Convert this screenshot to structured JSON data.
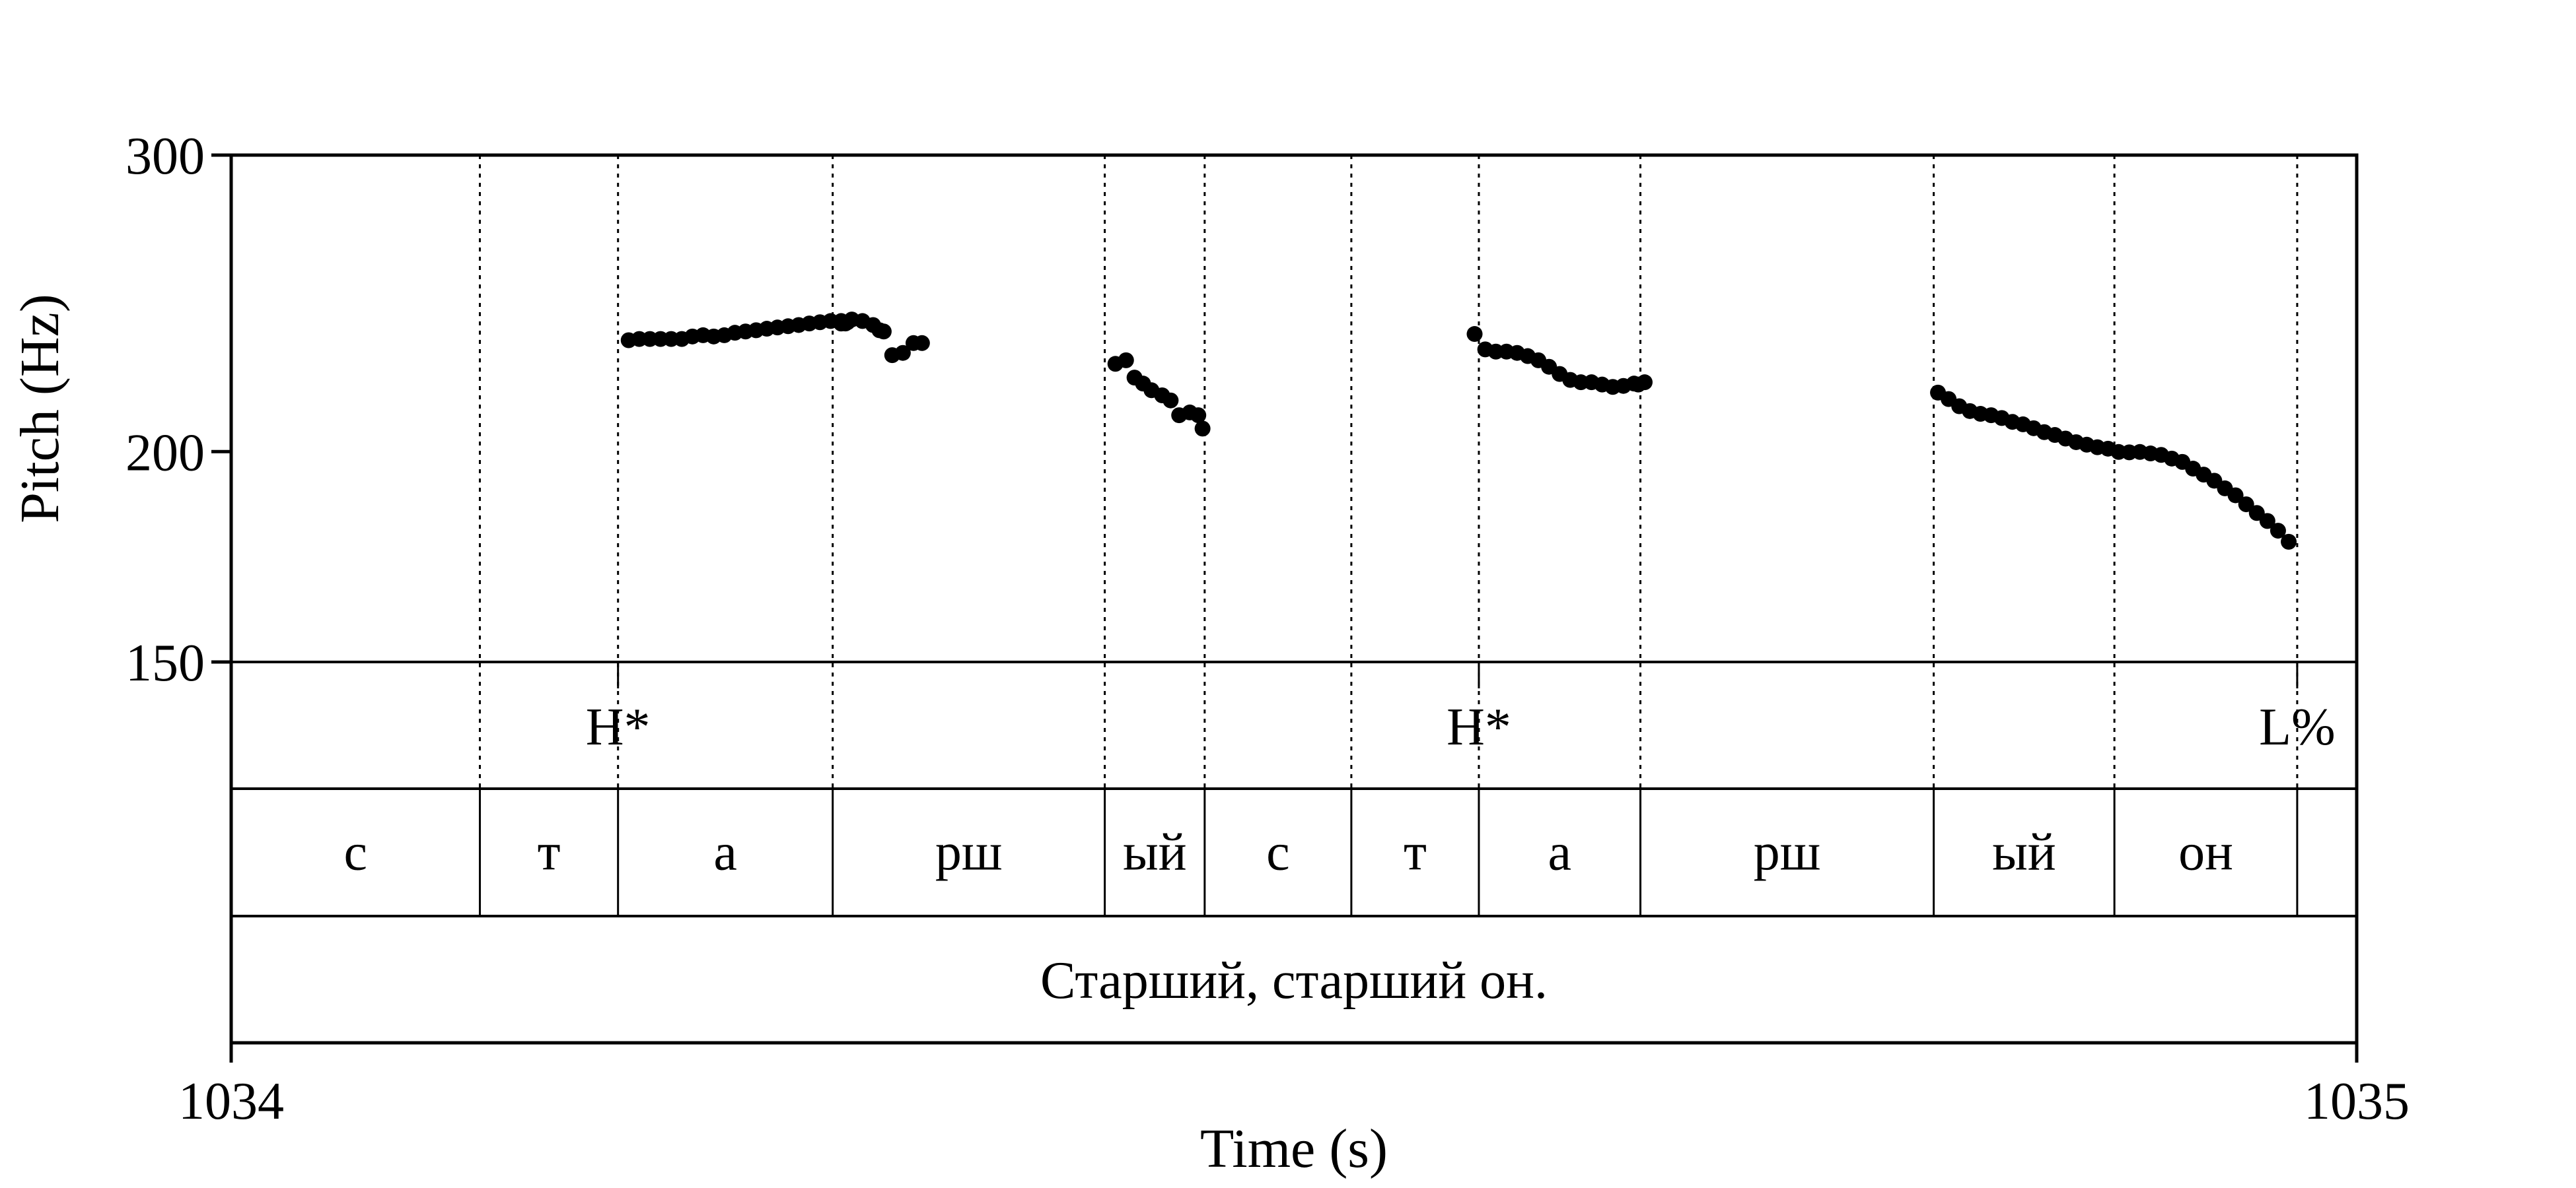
{
  "chart_data": {
    "type": "scatter",
    "xlabel": "Time (s)",
    "ylabel": "Pitch (Hz)",
    "xlim": [
      1034,
      1035
    ],
    "ylim": [
      150,
      300
    ],
    "y_scale": "log",
    "x_ticks": [
      {
        "value": 1034,
        "label": "1034"
      },
      {
        "value": 1035,
        "label": "1035"
      }
    ],
    "y_ticks": [
      {
        "value": 150,
        "label": "150"
      },
      {
        "value": 200,
        "label": "200"
      },
      {
        "value": 300,
        "label": "300"
      }
    ],
    "grid": false,
    "legend": "none",
    "point_color": "#000000",
    "boundaries": [
      1034.117,
      1034.182,
      1034.283,
      1034.411,
      1034.458,
      1034.527,
      1034.587,
      1034.663,
      1034.801,
      1034.886,
      1034.972
    ],
    "tiers": [
      {
        "name": "tones",
        "points": [
          {
            "time": 1034.182,
            "label": "H*"
          },
          {
            "time": 1034.587,
            "label": "H*"
          },
          {
            "time": 1034.972,
            "label": "L%"
          }
        ]
      },
      {
        "name": "segments",
        "intervals": [
          {
            "start": 1034.0,
            "end": 1034.117,
            "label": "с"
          },
          {
            "start": 1034.117,
            "end": 1034.182,
            "label": "т"
          },
          {
            "start": 1034.182,
            "end": 1034.283,
            "label": "а"
          },
          {
            "start": 1034.283,
            "end": 1034.411,
            "label": "рш"
          },
          {
            "start": 1034.411,
            "end": 1034.458,
            "label": "ый"
          },
          {
            "start": 1034.458,
            "end": 1034.527,
            "label": "с"
          },
          {
            "start": 1034.527,
            "end": 1034.587,
            "label": "т"
          },
          {
            "start": 1034.587,
            "end": 1034.663,
            "label": "а"
          },
          {
            "start": 1034.663,
            "end": 1034.801,
            "label": "рш"
          },
          {
            "start": 1034.801,
            "end": 1034.886,
            "label": "ый"
          },
          {
            "start": 1034.886,
            "end": 1034.972,
            "label": "он"
          },
          {
            "start": 1034.972,
            "end": 1035.0,
            "label": ""
          }
        ]
      },
      {
        "name": "sentence",
        "intervals": [
          {
            "start": 1034.0,
            "end": 1035.0,
            "label": "Старший, старший он."
          }
        ]
      }
    ],
    "series": [
      {
        "points": [
          [
            1034.187,
            232.9
          ],
          [
            1034.192,
            233.3
          ],
          [
            1034.197,
            233.3
          ],
          [
            1034.202,
            233.3
          ],
          [
            1034.207,
            233.3
          ],
          [
            1034.212,
            233.3
          ],
          [
            1034.217,
            234.1
          ],
          [
            1034.222,
            234.5
          ],
          [
            1034.227,
            234.1
          ],
          [
            1034.232,
            234.5
          ],
          [
            1034.237,
            235.3
          ],
          [
            1034.242,
            235.7
          ],
          [
            1034.247,
            236.1
          ],
          [
            1034.252,
            236.6
          ],
          [
            1034.257,
            237.0
          ],
          [
            1034.262,
            237.4
          ],
          [
            1034.267,
            237.8
          ],
          [
            1034.272,
            238.3
          ],
          [
            1034.277,
            238.7
          ],
          [
            1034.282,
            239.1
          ],
          [
            1034.287,
            239.1
          ],
          [
            1034.292,
            239.6
          ],
          [
            1034.297,
            239.1
          ],
          [
            1034.302,
            237.8
          ],
          [
            1034.307,
            235.7
          ],
          [
            1034.287,
            238.3
          ],
          [
            1034.287,
            238.3
          ],
          [
            1034.288,
            238.7
          ],
          [
            1034.29,
            238.7
          ],
          [
            1034.289,
            238.3
          ],
          [
            1034.305,
            236.1
          ],
          [
            1034.311,
            228.2
          ],
          [
            1034.316,
            228.9
          ],
          [
            1034.321,
            232.0
          ],
          [
            1034.325,
            232.0
          ],
          [
            1034.416,
            225.5
          ],
          [
            1034.421,
            226.6
          ],
          [
            1034.425,
            221.3
          ],
          [
            1034.429,
            219.5
          ],
          [
            1034.433,
            217.5
          ],
          [
            1034.438,
            216.0
          ],
          [
            1034.442,
            214.5
          ],
          [
            1034.446,
            210.2
          ],
          [
            1034.451,
            211.0
          ],
          [
            1034.455,
            210.2
          ],
          [
            1034.457,
            206.4
          ],
          [
            1034.585,
            234.9
          ],
          [
            1034.59,
            230.0
          ],
          [
            1034.595,
            229.3
          ],
          [
            1034.6,
            229.3
          ],
          [
            1034.605,
            228.9
          ],
          [
            1034.61,
            227.9
          ],
          [
            1034.615,
            226.6
          ],
          [
            1034.62,
            224.6
          ],
          [
            1034.625,
            222.4
          ],
          [
            1034.63,
            220.6
          ],
          [
            1034.635,
            219.9
          ],
          [
            1034.64,
            219.9
          ],
          [
            1034.645,
            219.2
          ],
          [
            1034.65,
            218.5
          ],
          [
            1034.655,
            218.8
          ],
          [
            1034.66,
            219.5
          ],
          [
            1034.665,
            219.9
          ],
          [
            1034.662,
            219.2
          ],
          [
            1034.803,
            216.8
          ],
          [
            1034.808,
            214.9
          ],
          [
            1034.813,
            212.8
          ],
          [
            1034.818,
            211.4
          ],
          [
            1034.823,
            210.6
          ],
          [
            1034.828,
            210.2
          ],
          [
            1034.833,
            209.4
          ],
          [
            1034.838,
            208.3
          ],
          [
            1034.843,
            207.6
          ],
          [
            1034.848,
            206.5
          ],
          [
            1034.853,
            205.4
          ],
          [
            1034.858,
            204.6
          ],
          [
            1034.863,
            203.6
          ],
          [
            1034.868,
            202.6
          ],
          [
            1034.873,
            201.9
          ],
          [
            1034.878,
            201.2
          ],
          [
            1034.883,
            200.8
          ],
          [
            1034.888,
            199.9
          ],
          [
            1034.893,
            199.8
          ],
          [
            1034.898,
            199.9
          ],
          [
            1034.903,
            199.5
          ],
          [
            1034.908,
            199.1
          ],
          [
            1034.913,
            198.1
          ],
          [
            1034.918,
            197.2
          ],
          [
            1034.923,
            195.4
          ],
          [
            1034.928,
            193.8
          ],
          [
            1034.933,
            192.2
          ],
          [
            1034.938,
            190.2
          ],
          [
            1034.943,
            188.4
          ],
          [
            1034.948,
            186.1
          ],
          [
            1034.953,
            183.9
          ],
          [
            1034.958,
            181.9
          ],
          [
            1034.963,
            179.5
          ],
          [
            1034.968,
            176.8
          ]
        ]
      }
    ]
  }
}
